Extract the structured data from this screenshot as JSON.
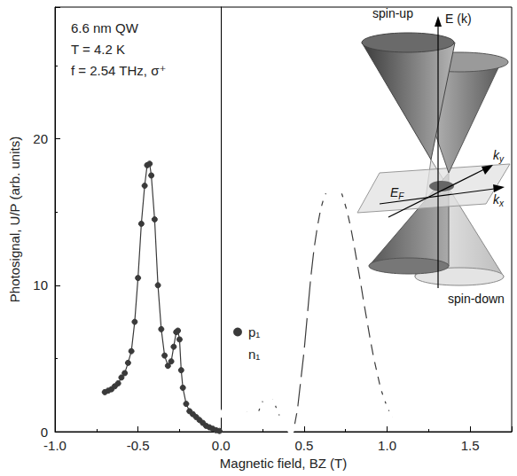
{
  "chart_data": {
    "type": "scatter",
    "xlabel": "Magnetic field, BZ (T)",
    "ylabel": "Photosignal, U/P (arb. units)",
    "xlim": [
      -1.0,
      1.75
    ],
    "xticks": [
      {
        "value": -1.0,
        "label": "-1.0"
      },
      -0.5,
      {
        "value": 0,
        "label": "0.0"
      },
      0.5,
      {
        "value": 1.0,
        "label": "1.0"
      },
      1.5
    ],
    "ylim": [
      0,
      29
    ],
    "yticks": [
      0,
      10,
      20
    ],
    "grid": false,
    "legend": "center",
    "annotations": [
      "6.6 nm QW",
      "T = 4.2 K",
      "f = 2.54 THz, σ⁺"
    ],
    "inset": {
      "labels": [
        {
          "text": "spin-up"
        },
        {
          "text": "E (k)"
        },
        {
          "text": "E",
          "sub": "F"
        },
        {
          "text": "k",
          "sub": "y"
        },
        {
          "text": "k",
          "sub": "x"
        },
        {
          "text": "spin-down"
        }
      ]
    },
    "series": [
      {
        "name": "p₁",
        "color": "#3a3a3a",
        "marker": "filled circle",
        "line_style": "solid",
        "x": [
          -0.7,
          -0.68,
          -0.66,
          -0.64,
          -0.62,
          -0.6,
          -0.58,
          -0.56,
          -0.54,
          -0.52,
          -0.5,
          -0.48,
          -0.46,
          -0.445,
          -0.43,
          -0.42,
          -0.4,
          -0.38,
          -0.36,
          -0.34,
          -0.32,
          -0.3,
          -0.285,
          -0.27,
          -0.26,
          -0.25,
          -0.24,
          -0.23,
          -0.21,
          -0.19,
          -0.17,
          -0.15,
          -0.13,
          -0.11,
          -0.09,
          -0.07,
          -0.05,
          -0.03,
          -0.01
        ],
        "values": [
          2.7,
          2.8,
          2.9,
          3.1,
          3.3,
          3.7,
          4.0,
          4.7,
          5.5,
          7.5,
          10.5,
          14.2,
          16.8,
          18.2,
          18.3,
          17.5,
          14.5,
          10.0,
          7.0,
          5.2,
          4.5,
          4.8,
          5.8,
          6.8,
          6.9,
          6.3,
          4.2,
          3.0,
          1.9,
          1.4,
          1.2,
          1.0,
          0.8,
          0.6,
          0.4,
          0.3,
          0.2,
          0.1,
          0.05
        ]
      },
      {
        "name": "n₁",
        "color": "#3a3a3a",
        "marker": "open circle",
        "line_style": "solid",
        "x": [
          0.0,
          0.02,
          0.05,
          0.08,
          0.11,
          0.14,
          0.17,
          0.2,
          0.22,
          0.24,
          0.26,
          0.28,
          0.3,
          0.32,
          0.34,
          0.36,
          0.38,
          0.4,
          0.42,
          0.44,
          0.46,
          0.48,
          0.5,
          0.52,
          0.54,
          0.56,
          0.58,
          0.6,
          0.62,
          0.64,
          0.66,
          0.68,
          0.7,
          0.72,
          0.74,
          0.76,
          0.78,
          0.8,
          0.82,
          0.84,
          0.86,
          0.88,
          0.9,
          0.92,
          0.94,
          0.96,
          0.98,
          1.0,
          1.02,
          1.04,
          1.06,
          1.08,
          1.1,
          1.12
        ],
        "values": [
          1.2,
          1.4,
          1.6,
          1.7,
          1.7,
          1.5,
          1.2,
          1.0,
          1.2,
          1.8,
          2.3,
          2.5,
          2.4,
          2.0,
          1.4,
          0.9,
          0.6,
          0.3,
          0.1,
          0.3,
          1.5,
          3.5,
          5.5,
          8.0,
          10.5,
          12.5,
          14.0,
          15.2,
          16.0,
          16.5,
          16.8,
          16.9,
          16.8,
          16.5,
          15.8,
          15.0,
          14.0,
          12.8,
          11.5,
          10.2,
          8.8,
          7.5,
          6.2,
          5.0,
          4.0,
          3.0,
          2.3,
          1.7,
          1.2,
          0.8,
          0.6,
          0.5,
          0.4,
          0.3
        ]
      }
    ]
  }
}
